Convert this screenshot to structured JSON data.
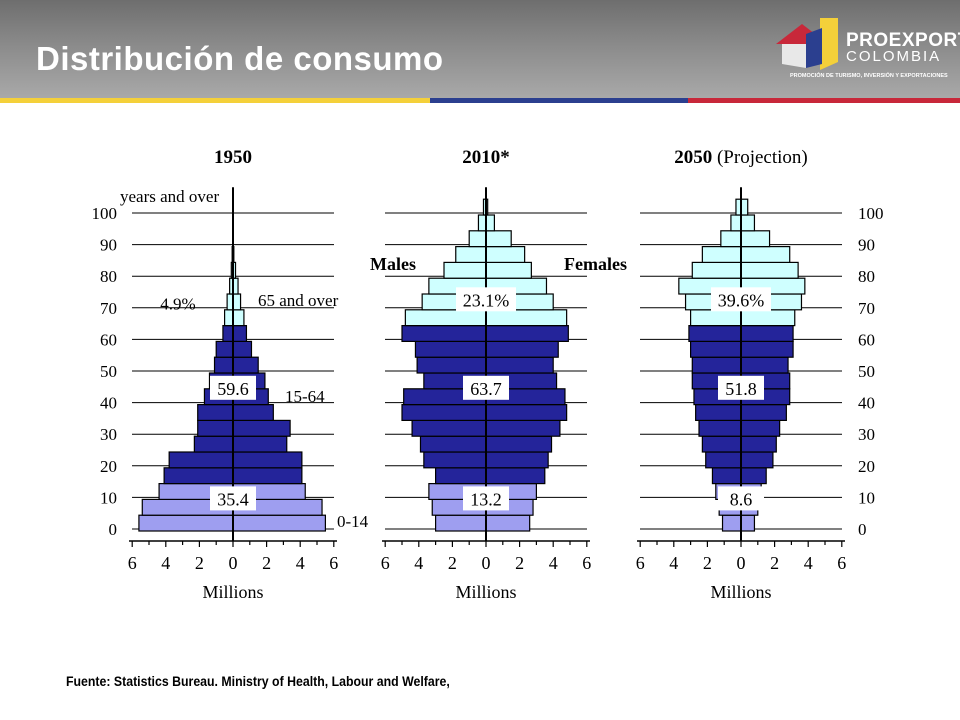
{
  "slide": {
    "title": "Distribución de consumo",
    "source": "Fuente: Statistics Bureau. Ministry of Health, Labour and Welfare,"
  },
  "logo": {
    "name": "PROEXPORT",
    "country": "COLOMBIA",
    "tagline": "PROMOCIÓN DE TURISMO, INVERSIÓN Y EXPORTACIONES"
  },
  "colors": {
    "young": "#9e9ef0",
    "working": "#24249a",
    "old": "#cfffff",
    "stripe_yellow": "#f4d03a",
    "stripe_blue": "#2b3f8f",
    "stripe_red": "#c8283a"
  },
  "chart_data": {
    "type": "bar",
    "axis_labels": {
      "x": "Millions",
      "males": "Males",
      "females": "Females",
      "age_top": "years and over"
    },
    "age_ticks": [
      0,
      10,
      20,
      30,
      40,
      50,
      60,
      70,
      80,
      90,
      100
    ],
    "x_ticks": [
      6,
      4,
      2,
      0,
      2,
      4,
      6
    ],
    "xlim": [
      -6,
      6
    ],
    "group_labels": {
      "young": "0-14",
      "working": "15-64",
      "old": "65 and over"
    },
    "pyramids": [
      {
        "title": "1950",
        "bars_male": [
          5.6,
          5.4,
          4.4,
          4.1,
          3.8,
          2.3,
          2.1,
          2.1,
          1.7,
          1.4,
          1.1,
          1.0,
          0.6,
          0.5,
          0.35,
          0.2,
          0.1,
          0.05,
          0.0,
          0.0,
          0.0
        ],
        "bars_female": [
          5.5,
          5.3,
          4.3,
          4.1,
          4.1,
          3.2,
          3.4,
          2.4,
          2.1,
          1.9,
          1.5,
          1.1,
          0.8,
          0.65,
          0.45,
          0.3,
          0.15,
          0.05,
          0.0,
          0.0,
          0.0
        ],
        "shares": {
          "young": "35.4",
          "working": "59.6",
          "old": "4.9%"
        }
      },
      {
        "title": "2010*",
        "subtitle": "",
        "bars_male": [
          3.0,
          3.2,
          3.4,
          3.0,
          3.7,
          3.9,
          4.4,
          5.0,
          4.9,
          3.7,
          4.1,
          4.2,
          5.0,
          4.8,
          3.8,
          3.4,
          2.5,
          1.8,
          1.0,
          0.45,
          0.15
        ],
        "bars_female": [
          2.6,
          2.8,
          3.0,
          3.5,
          3.7,
          3.9,
          4.4,
          4.8,
          4.7,
          4.2,
          4.0,
          4.3,
          4.9,
          4.8,
          4.0,
          3.6,
          2.7,
          2.3,
          1.5,
          0.5,
          0.1
        ],
        "shares": {
          "young": "13.2",
          "working": "63.7",
          "old": "23.1%"
        }
      },
      {
        "title": "2050",
        "subtitle": "(Projection)",
        "bars_male": [
          1.1,
          1.3,
          1.5,
          1.7,
          2.1,
          2.3,
          2.5,
          2.7,
          2.8,
          2.9,
          2.9,
          3.0,
          3.1,
          3.0,
          3.3,
          3.7,
          2.9,
          2.3,
          1.2,
          0.6,
          0.3
        ],
        "bars_female": [
          0.8,
          1.0,
          1.2,
          1.5,
          1.9,
          2.1,
          2.3,
          2.7,
          2.9,
          2.9,
          2.8,
          3.1,
          3.1,
          3.2,
          3.6,
          3.8,
          3.4,
          2.9,
          1.7,
          0.8,
          0.4
        ],
        "shares": {
          "young": "8.6",
          "working": "51.8",
          "old": "39.6%"
        }
      }
    ]
  }
}
